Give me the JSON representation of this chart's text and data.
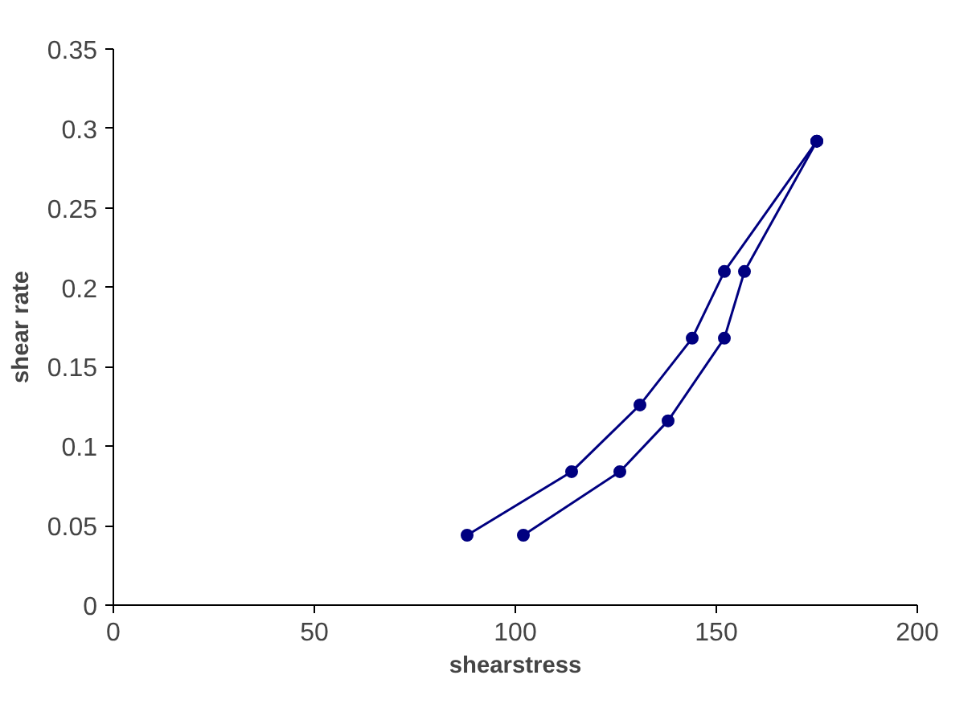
{
  "chart_data": {
    "type": "line",
    "xlabel": "shearstress",
    "ylabel": "shear rate",
    "xlim": [
      0,
      200
    ],
    "xticks": [
      0,
      50,
      100,
      150,
      200
    ],
    "ylim": [
      0,
      0.35
    ],
    "yticks": [
      0,
      0.05,
      0.1,
      0.15,
      0.2,
      0.25,
      0.3,
      0.35
    ],
    "grid": false,
    "marker": "circle",
    "line_style": "solid",
    "series": [
      {
        "color": "#000080",
        "x": [
          88,
          114,
          131,
          144,
          152,
          175
        ],
        "values": [
          0.044,
          0.084,
          0.126,
          0.168,
          0.21,
          0.292
        ]
      },
      {
        "color": "#000080",
        "x": [
          102,
          126,
          138,
          152,
          157,
          175
        ],
        "values": [
          0.044,
          0.084,
          0.116,
          0.168,
          0.21,
          0.292
        ]
      }
    ]
  }
}
